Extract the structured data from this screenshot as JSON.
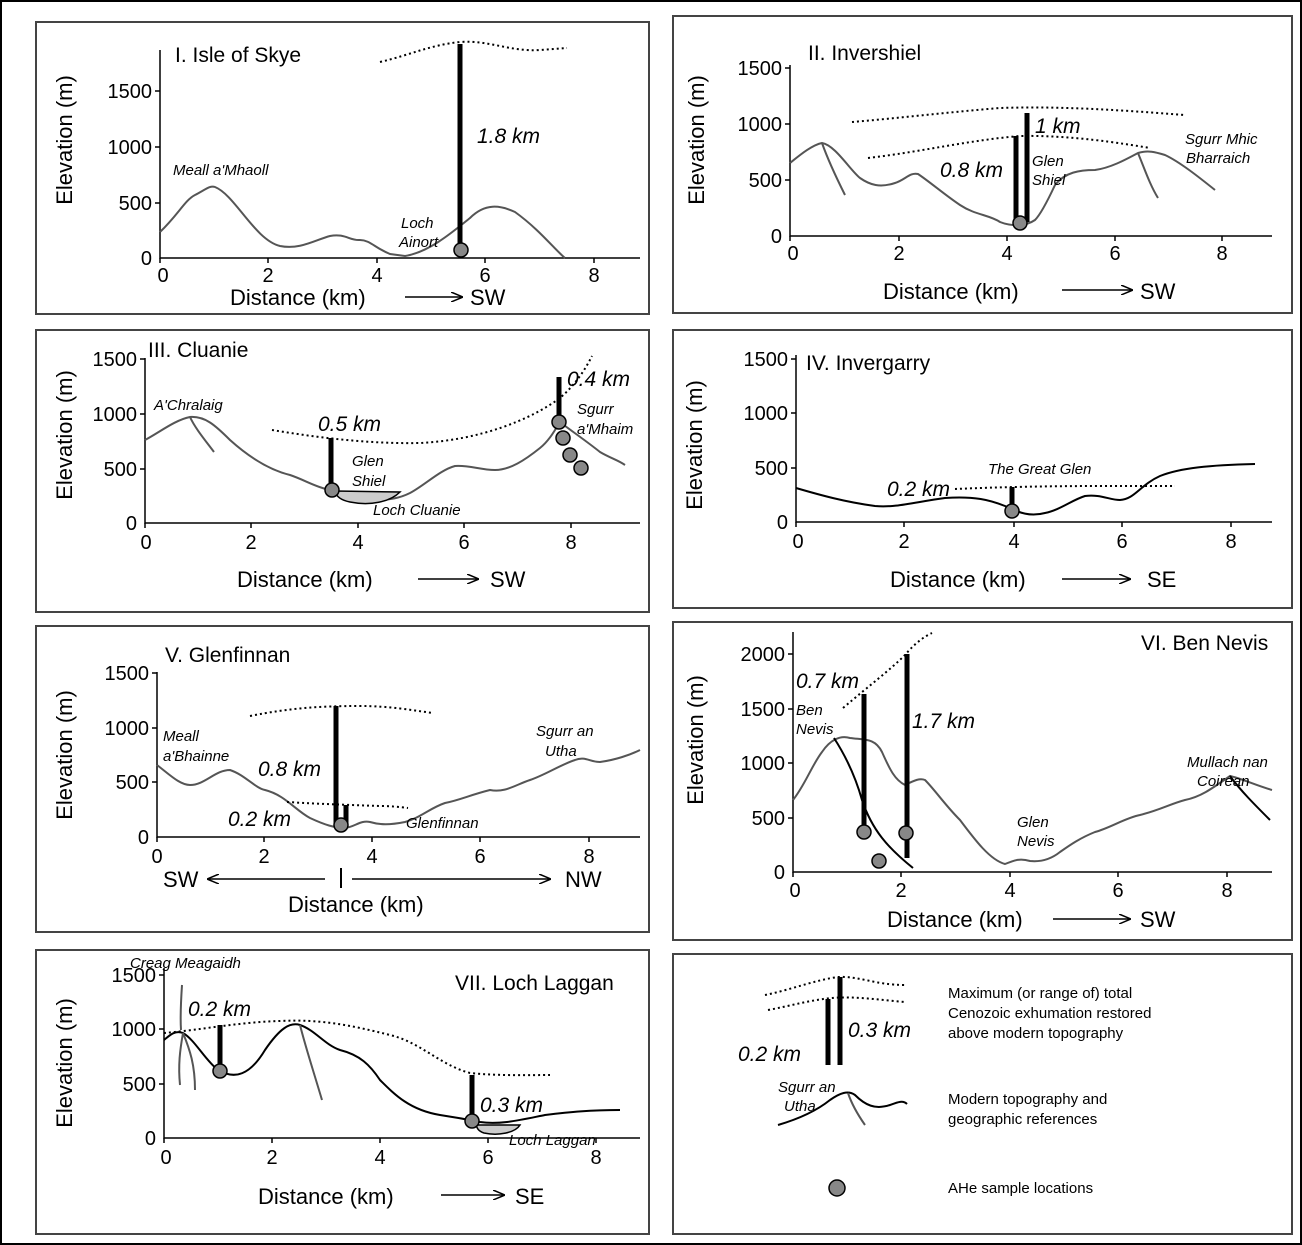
{
  "panels": [
    {
      "title": "I. Isle of Skye",
      "ylabel": "Elevation (m)",
      "xlabel": "Distance (km)",
      "direction": "SW",
      "yticks": [
        "0",
        "500",
        "1000",
        "1500"
      ],
      "xticks": [
        "0",
        "2",
        "4",
        "6",
        "8"
      ],
      "places": [
        "Meall a'Mhaoll",
        "Loch",
        "Ainort"
      ],
      "exhumation": [
        "1.8 km"
      ]
    },
    {
      "title": "II. Invershiel",
      "ylabel": "Elevation (m)",
      "xlabel": "Distance (km)",
      "direction": "SW",
      "yticks": [
        "0",
        "500",
        "1000",
        "1500"
      ],
      "xticks": [
        "0",
        "2",
        "4",
        "6",
        "8"
      ],
      "places": [
        "Glen",
        "Shiel",
        "Sgurr Mhic",
        "Bharraich"
      ],
      "exhumation": [
        "1 km",
        "0.8 km"
      ]
    },
    {
      "title": "III. Cluanie",
      "ylabel": "Elevation (m)",
      "xlabel": "Distance (km)",
      "direction": "SW",
      "yticks": [
        "0",
        "500",
        "1000",
        "1500"
      ],
      "xticks": [
        "0",
        "2",
        "4",
        "6",
        "8"
      ],
      "places": [
        "A'Chralaig",
        "Glen",
        "Shiel",
        "Loch Cluanie",
        "Sgurr",
        "a'Mhaim"
      ],
      "exhumation": [
        "0.5 km",
        "0.4 km"
      ]
    },
    {
      "title": "IV. Invergarry",
      "ylabel": "Elevation (m)",
      "xlabel": "Distance (km)",
      "direction": "SE",
      "yticks": [
        "0",
        "500",
        "1000",
        "1500"
      ],
      "xticks": [
        "0",
        "2",
        "4",
        "6",
        "8"
      ],
      "places": [
        "The Great Glen"
      ],
      "exhumation": [
        "0.2 km"
      ]
    },
    {
      "title": "V. Glenfinnan",
      "ylabel": "Elevation (m)",
      "xlabel": "Distance (km)",
      "direction_left": "SW",
      "direction": "NW",
      "yticks": [
        "0",
        "500",
        "1000",
        "1500"
      ],
      "xticks": [
        "0",
        "2",
        "4",
        "6",
        "8"
      ],
      "places": [
        "Meall",
        "a'Bhainne",
        "Sgurr an",
        "Utha",
        "Glenfinnan"
      ],
      "exhumation": [
        "0.8 km",
        "0.2 km"
      ]
    },
    {
      "title": "VI. Ben Nevis",
      "ylabel": "Elevation (m)",
      "xlabel": "Distance (km)",
      "direction": "SW",
      "yticks": [
        "0",
        "500",
        "1000",
        "1500",
        "2000"
      ],
      "xticks": [
        "0",
        "2",
        "4",
        "6",
        "8"
      ],
      "places": [
        "Ben",
        "Nevis",
        "Glen",
        "Nevis",
        "Mullach nan",
        "Coirean"
      ],
      "exhumation": [
        "0.7 km",
        "1.7 km"
      ]
    },
    {
      "title": "VII. Loch Laggan",
      "ylabel": "Elevation (m)",
      "xlabel": "Distance (km)",
      "direction": "SE",
      "yticks": [
        "0",
        "500",
        "1000",
        "1500"
      ],
      "xticks": [
        "0",
        "2",
        "4",
        "6",
        "8"
      ],
      "places": [
        "Creag Meagaidh",
        "Loch Laggan"
      ],
      "exhumation": [
        "0.2 km",
        "0.3 km"
      ]
    }
  ],
  "legend": {
    "exh_example_left": "0.2 km",
    "exh_example_right": "0.3 km",
    "exh_desc": [
      "Maximum (or range of) total",
      "Cenozoic exhumation restored",
      "above modern topography"
    ],
    "topo_example": [
      "Sgurr an",
      "Utha"
    ],
    "topo_desc": [
      "Modern topography and",
      "geographic references"
    ],
    "sample_desc": "AHe sample locations"
  }
}
